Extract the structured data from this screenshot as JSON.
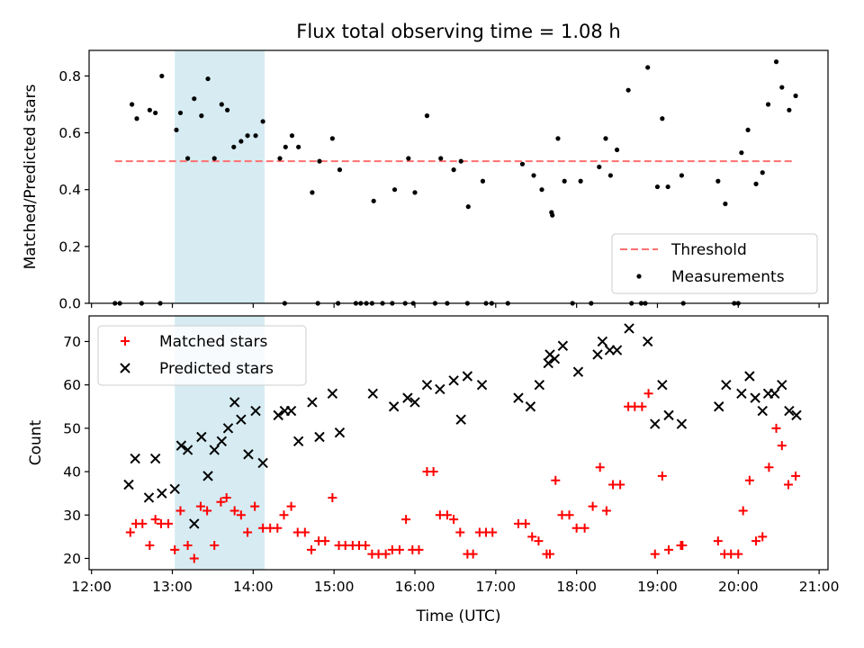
{
  "chart_data": [
    {
      "type": "scatter",
      "title": "Flux total observing time = 1.08 h",
      "xlabel": "",
      "ylabel": "Matched/Predicted stars",
      "xlim": [
        11.97,
        21.11
      ],
      "ylim": [
        0,
        0.89
      ],
      "yticks": [
        0.0,
        0.2,
        0.4,
        0.6,
        0.8
      ],
      "ytick_labels": [
        "0.0",
        "0.2",
        "0.4",
        "0.6",
        "0.8"
      ],
      "highlight_span": {
        "x0": 13.03,
        "x1": 14.14,
        "color": "#add8e6"
      },
      "threshold": {
        "name": "Threshold",
        "y": 0.5,
        "x0": 12.29,
        "x1": 20.7,
        "color": "#ff6f6f"
      },
      "legend": {
        "position": "lower right",
        "entries": [
          "Threshold",
          "Measurements"
        ]
      },
      "series": [
        {
          "name": "Measurements",
          "marker": "dot",
          "color": "#000000",
          "points": [
            [
              12.29,
              0
            ],
            [
              12.35,
              0
            ],
            [
              12.62,
              0
            ],
            [
              12.85,
              0
            ],
            [
              14.39,
              0
            ],
            [
              14.8,
              0
            ],
            [
              15.05,
              0
            ],
            [
              15.27,
              0
            ],
            [
              15.33,
              0
            ],
            [
              15.4,
              0
            ],
            [
              15.47,
              0
            ],
            [
              15.6,
              0
            ],
            [
              15.72,
              0
            ],
            [
              15.88,
              0
            ],
            [
              15.98,
              0
            ],
            [
              16.25,
              0
            ],
            [
              16.4,
              0
            ],
            [
              16.65,
              0
            ],
            [
              16.88,
              0
            ],
            [
              16.95,
              0
            ],
            [
              17.15,
              0
            ],
            [
              17.95,
              0
            ],
            [
              18.18,
              0
            ],
            [
              18.68,
              0
            ],
            [
              18.8,
              0
            ],
            [
              18.85,
              0
            ],
            [
              19.32,
              0
            ],
            [
              19.95,
              0
            ],
            [
              20.0,
              0
            ],
            [
              12.5,
              0.7
            ],
            [
              12.56,
              0.65
            ],
            [
              12.72,
              0.68
            ],
            [
              12.79,
              0.67
            ],
            [
              12.87,
              0.8
            ],
            [
              13.05,
              0.61
            ],
            [
              13.1,
              0.67
            ],
            [
              13.19,
              0.51
            ],
            [
              13.27,
              0.72
            ],
            [
              13.36,
              0.66
            ],
            [
              13.44,
              0.79
            ],
            [
              13.52,
              0.51
            ],
            [
              13.61,
              0.7
            ],
            [
              13.68,
              0.68
            ],
            [
              13.76,
              0.55
            ],
            [
              13.85,
              0.57
            ],
            [
              13.93,
              0.59
            ],
            [
              14.03,
              0.59
            ],
            [
              14.12,
              0.64
            ],
            [
              14.33,
              0.51
            ],
            [
              14.4,
              0.55
            ],
            [
              14.48,
              0.59
            ],
            [
              14.56,
              0.55
            ],
            [
              14.73,
              0.39
            ],
            [
              14.82,
              0.5
            ],
            [
              14.98,
              0.58
            ],
            [
              15.07,
              0.47
            ],
            [
              15.49,
              0.36
            ],
            [
              15.75,
              0.4
            ],
            [
              15.92,
              0.51
            ],
            [
              16.0,
              0.39
            ],
            [
              16.15,
              0.66
            ],
            [
              16.32,
              0.51
            ],
            [
              16.48,
              0.47
            ],
            [
              16.57,
              0.5
            ],
            [
              16.66,
              0.34
            ],
            [
              16.84,
              0.43
            ],
            [
              17.33,
              0.49
            ],
            [
              17.47,
              0.45
            ],
            [
              17.57,
              0.4
            ],
            [
              17.69,
              0.32
            ],
            [
              17.7,
              0.31
            ],
            [
              17.77,
              0.58
            ],
            [
              17.85,
              0.43
            ],
            [
              18.05,
              0.43
            ],
            [
              18.28,
              0.48
            ],
            [
              18.36,
              0.58
            ],
            [
              18.42,
              0.45
            ],
            [
              18.5,
              0.54
            ],
            [
              18.64,
              0.75
            ],
            [
              18.88,
              0.83
            ],
            [
              19.0,
              0.41
            ],
            [
              19.06,
              0.65
            ],
            [
              19.13,
              0.41
            ],
            [
              19.3,
              0.45
            ],
            [
              19.75,
              0.43
            ],
            [
              19.84,
              0.35
            ],
            [
              20.04,
              0.53
            ],
            [
              20.12,
              0.61
            ],
            [
              20.22,
              0.42
            ],
            [
              20.3,
              0.46
            ],
            [
              20.37,
              0.7
            ],
            [
              20.47,
              0.85
            ],
            [
              20.54,
              0.76
            ],
            [
              20.63,
              0.68
            ],
            [
              20.71,
              0.73
            ]
          ]
        }
      ]
    },
    {
      "type": "scatter",
      "title": "",
      "xlabel": "Time (UTC)",
      "ylabel": "Count",
      "xlim": [
        11.97,
        21.11
      ],
      "ylim": [
        17.4,
        75.9
      ],
      "xticks": [
        12,
        13,
        14,
        15,
        16,
        17,
        18,
        19,
        20,
        21
      ],
      "xtick_labels": [
        "12:00",
        "13:00",
        "14:00",
        "15:00",
        "16:00",
        "17:00",
        "18:00",
        "19:00",
        "20:00",
        "21:00"
      ],
      "yticks": [
        20,
        30,
        40,
        50,
        60,
        70
      ],
      "ytick_labels": [
        "20",
        "30",
        "40",
        "50",
        "60",
        "70"
      ],
      "highlight_span": {
        "x0": 13.03,
        "x1": 14.14,
        "color": "#add8e6"
      },
      "legend": {
        "position": "upper left",
        "entries": [
          "Matched stars",
          "Predicted stars"
        ]
      },
      "series": [
        {
          "name": "Matched stars",
          "marker": "plus",
          "color": "#ff0000",
          "points": [
            [
              12.48,
              26
            ],
            [
              12.55,
              28
            ],
            [
              12.63,
              28
            ],
            [
              12.72,
              23
            ],
            [
              12.79,
              29
            ],
            [
              12.86,
              28
            ],
            [
              12.95,
              28
            ],
            [
              13.03,
              22
            ],
            [
              13.1,
              31
            ],
            [
              13.19,
              23
            ],
            [
              13.27,
              20
            ],
            [
              13.35,
              32
            ],
            [
              13.43,
              31
            ],
            [
              13.52,
              23
            ],
            [
              13.6,
              33
            ],
            [
              13.67,
              34
            ],
            [
              13.77,
              31
            ],
            [
              13.85,
              30
            ],
            [
              13.93,
              26
            ],
            [
              14.02,
              32
            ],
            [
              14.12,
              27
            ],
            [
              14.21,
              27
            ],
            [
              14.3,
              27
            ],
            [
              14.38,
              30
            ],
            [
              14.47,
              32
            ],
            [
              14.55,
              26
            ],
            [
              14.64,
              26
            ],
            [
              14.72,
              22
            ],
            [
              14.81,
              24
            ],
            [
              14.89,
              24
            ],
            [
              14.98,
              34
            ],
            [
              15.06,
              23
            ],
            [
              15.14,
              23
            ],
            [
              15.23,
              23
            ],
            [
              15.31,
              23
            ],
            [
              15.39,
              23
            ],
            [
              15.47,
              21
            ],
            [
              15.55,
              21
            ],
            [
              15.64,
              21
            ],
            [
              15.72,
              22
            ],
            [
              15.81,
              22
            ],
            [
              15.89,
              29
            ],
            [
              15.97,
              22
            ],
            [
              16.05,
              22
            ],
            [
              16.15,
              40
            ],
            [
              16.23,
              40
            ],
            [
              16.31,
              30
            ],
            [
              16.4,
              30
            ],
            [
              16.48,
              29
            ],
            [
              16.56,
              26
            ],
            [
              16.65,
              21
            ],
            [
              16.72,
              21
            ],
            [
              16.8,
              26
            ],
            [
              16.88,
              26
            ],
            [
              16.96,
              26
            ],
            [
              17.28,
              28
            ],
            [
              17.37,
              28
            ],
            [
              17.45,
              25
            ],
            [
              17.53,
              24
            ],
            [
              17.63,
              21
            ],
            [
              17.67,
              21
            ],
            [
              17.74,
              38
            ],
            [
              17.82,
              30
            ],
            [
              17.91,
              30
            ],
            [
              18.0,
              27
            ],
            [
              18.1,
              27
            ],
            [
              18.2,
              32
            ],
            [
              18.29,
              41
            ],
            [
              18.37,
              31
            ],
            [
              18.45,
              37
            ],
            [
              18.54,
              37
            ],
            [
              18.64,
              55
            ],
            [
              18.72,
              55
            ],
            [
              18.81,
              55
            ],
            [
              18.89,
              58
            ],
            [
              18.97,
              21
            ],
            [
              19.06,
              39
            ],
            [
              19.14,
              22
            ],
            [
              19.29,
              23
            ],
            [
              19.31,
              23
            ],
            [
              19.75,
              24
            ],
            [
              19.83,
              21
            ],
            [
              19.91,
              21
            ],
            [
              20.0,
              21
            ],
            [
              20.06,
              31
            ],
            [
              20.14,
              38
            ],
            [
              20.22,
              24
            ],
            [
              20.3,
              25
            ],
            [
              20.38,
              41
            ],
            [
              20.47,
              50
            ],
            [
              20.54,
              46
            ],
            [
              20.62,
              37
            ],
            [
              20.71,
              39
            ]
          ]
        },
        {
          "name": "Predicted stars",
          "marker": "x",
          "color": "#000000",
          "points": [
            [
              12.46,
              37
            ],
            [
              12.54,
              43
            ],
            [
              12.71,
              34
            ],
            [
              12.79,
              43
            ],
            [
              12.87,
              35
            ],
            [
              13.03,
              36
            ],
            [
              13.11,
              46
            ],
            [
              13.19,
              45
            ],
            [
              13.27,
              28
            ],
            [
              13.36,
              48
            ],
            [
              13.44,
              39
            ],
            [
              13.52,
              45
            ],
            [
              13.61,
              47
            ],
            [
              13.69,
              50
            ],
            [
              13.77,
              56
            ],
            [
              13.85,
              52
            ],
            [
              13.94,
              44
            ],
            [
              14.03,
              54
            ],
            [
              14.12,
              42
            ],
            [
              14.31,
              53
            ],
            [
              14.39,
              54
            ],
            [
              14.47,
              54
            ],
            [
              14.56,
              47
            ],
            [
              14.73,
              56
            ],
            [
              14.82,
              48
            ],
            [
              14.98,
              58
            ],
            [
              15.07,
              49
            ],
            [
              15.48,
              58
            ],
            [
              15.74,
              55
            ],
            [
              15.91,
              57
            ],
            [
              16.0,
              56
            ],
            [
              16.15,
              60
            ],
            [
              16.31,
              59
            ],
            [
              16.48,
              61
            ],
            [
              16.57,
              52
            ],
            [
              16.65,
              62
            ],
            [
              16.83,
              60
            ],
            [
              17.28,
              57
            ],
            [
              17.43,
              55
            ],
            [
              17.54,
              60
            ],
            [
              17.65,
              65
            ],
            [
              17.67,
              67
            ],
            [
              17.73,
              66
            ],
            [
              17.83,
              69
            ],
            [
              18.02,
              63
            ],
            [
              18.26,
              67
            ],
            [
              18.32,
              70
            ],
            [
              18.41,
              68
            ],
            [
              18.5,
              68
            ],
            [
              18.65,
              73
            ],
            [
              18.88,
              70
            ],
            [
              18.97,
              51
            ],
            [
              19.06,
              60
            ],
            [
              19.14,
              53
            ],
            [
              19.3,
              51
            ],
            [
              19.76,
              55
            ],
            [
              19.85,
              60
            ],
            [
              20.04,
              58
            ],
            [
              20.14,
              62
            ],
            [
              20.21,
              57
            ],
            [
              20.3,
              54
            ],
            [
              20.37,
              58
            ],
            [
              20.45,
              58
            ],
            [
              20.54,
              60
            ],
            [
              20.63,
              54
            ],
            [
              20.72,
              53
            ]
          ]
        }
      ]
    }
  ]
}
